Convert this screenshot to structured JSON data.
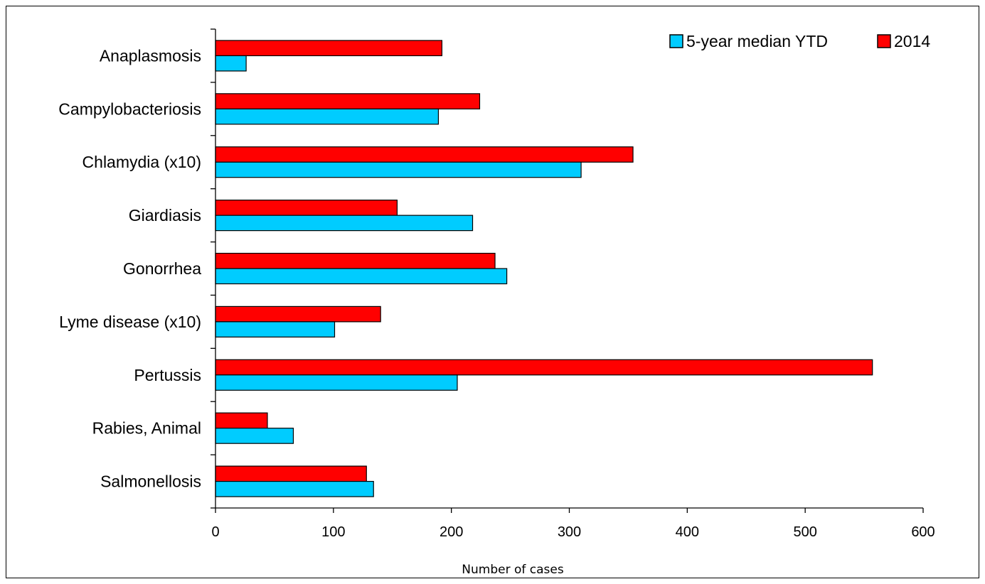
{
  "chart_data": {
    "type": "bar",
    "orientation": "horizontal",
    "categories": [
      "Anaplasmosis",
      "Campylobacteriosis",
      "Chlamydia (x10)",
      "Giardiasis",
      "Gonorrhea",
      "Lyme disease (x10)",
      "Pertussis",
      "Rabies, Animal",
      "Salmonellosis"
    ],
    "series": [
      {
        "name": "5-year median YTD",
        "color": "#00CCFF",
        "values": [
          26,
          189,
          310,
          218,
          247,
          101,
          205,
          66,
          134
        ]
      },
      {
        "name": "2014",
        "color": "#FF0000",
        "values": [
          192,
          224,
          354,
          154,
          237,
          140,
          557,
          44,
          128
        ]
      }
    ],
    "xlabel": "Number of cases",
    "xlim": [
      0,
      600
    ],
    "xticks": [
      0,
      100,
      200,
      300,
      400,
      500,
      600
    ],
    "grid": false,
    "legend": {
      "position": "top-right"
    }
  }
}
